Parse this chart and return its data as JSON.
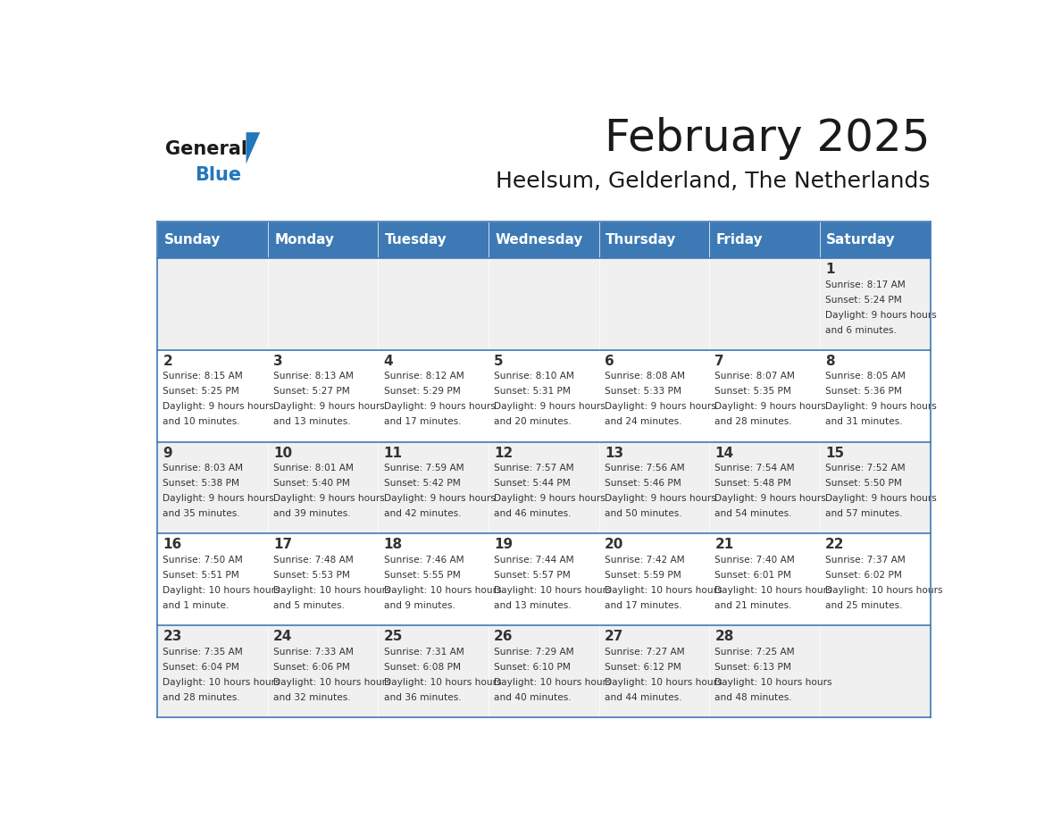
{
  "title": "February 2025",
  "subtitle": "Heelsum, Gelderland, The Netherlands",
  "days_of_week": [
    "Sunday",
    "Monday",
    "Tuesday",
    "Wednesday",
    "Thursday",
    "Friday",
    "Saturday"
  ],
  "header_bg": "#3d7ab5",
  "header_text": "#ffffff",
  "cell_bg_light": "#f0f0f0",
  "cell_bg_white": "#ffffff",
  "grid_line_color": "#3d7ab5",
  "text_color": "#333333",
  "title_color": "#1a1a1a",
  "logo_general_color": "#1a1a1a",
  "logo_blue_color": "#2277bb",
  "calendar_data": [
    [
      null,
      null,
      null,
      null,
      null,
      null,
      {
        "day": 1,
        "sunrise": "8:17 AM",
        "sunset": "5:24 PM",
        "daylight": "9 hours and 6 minutes"
      }
    ],
    [
      {
        "day": 2,
        "sunrise": "8:15 AM",
        "sunset": "5:25 PM",
        "daylight": "9 hours and 10 minutes"
      },
      {
        "day": 3,
        "sunrise": "8:13 AM",
        "sunset": "5:27 PM",
        "daylight": "9 hours and 13 minutes"
      },
      {
        "day": 4,
        "sunrise": "8:12 AM",
        "sunset": "5:29 PM",
        "daylight": "9 hours and 17 minutes"
      },
      {
        "day": 5,
        "sunrise": "8:10 AM",
        "sunset": "5:31 PM",
        "daylight": "9 hours and 20 minutes"
      },
      {
        "day": 6,
        "sunrise": "8:08 AM",
        "sunset": "5:33 PM",
        "daylight": "9 hours and 24 minutes"
      },
      {
        "day": 7,
        "sunrise": "8:07 AM",
        "sunset": "5:35 PM",
        "daylight": "9 hours and 28 minutes"
      },
      {
        "day": 8,
        "sunrise": "8:05 AM",
        "sunset": "5:36 PM",
        "daylight": "9 hours and 31 minutes"
      }
    ],
    [
      {
        "day": 9,
        "sunrise": "8:03 AM",
        "sunset": "5:38 PM",
        "daylight": "9 hours and 35 minutes"
      },
      {
        "day": 10,
        "sunrise": "8:01 AM",
        "sunset": "5:40 PM",
        "daylight": "9 hours and 39 minutes"
      },
      {
        "day": 11,
        "sunrise": "7:59 AM",
        "sunset": "5:42 PM",
        "daylight": "9 hours and 42 minutes"
      },
      {
        "day": 12,
        "sunrise": "7:57 AM",
        "sunset": "5:44 PM",
        "daylight": "9 hours and 46 minutes"
      },
      {
        "day": 13,
        "sunrise": "7:56 AM",
        "sunset": "5:46 PM",
        "daylight": "9 hours and 50 minutes"
      },
      {
        "day": 14,
        "sunrise": "7:54 AM",
        "sunset": "5:48 PM",
        "daylight": "9 hours and 54 minutes"
      },
      {
        "day": 15,
        "sunrise": "7:52 AM",
        "sunset": "5:50 PM",
        "daylight": "9 hours and 57 minutes"
      }
    ],
    [
      {
        "day": 16,
        "sunrise": "7:50 AM",
        "sunset": "5:51 PM",
        "daylight": "10 hours and 1 minute"
      },
      {
        "day": 17,
        "sunrise": "7:48 AM",
        "sunset": "5:53 PM",
        "daylight": "10 hours and 5 minutes"
      },
      {
        "day": 18,
        "sunrise": "7:46 AM",
        "sunset": "5:55 PM",
        "daylight": "10 hours and 9 minutes"
      },
      {
        "day": 19,
        "sunrise": "7:44 AM",
        "sunset": "5:57 PM",
        "daylight": "10 hours and 13 minutes"
      },
      {
        "day": 20,
        "sunrise": "7:42 AM",
        "sunset": "5:59 PM",
        "daylight": "10 hours and 17 minutes"
      },
      {
        "day": 21,
        "sunrise": "7:40 AM",
        "sunset": "6:01 PM",
        "daylight": "10 hours and 21 minutes"
      },
      {
        "day": 22,
        "sunrise": "7:37 AM",
        "sunset": "6:02 PM",
        "daylight": "10 hours and 25 minutes"
      }
    ],
    [
      {
        "day": 23,
        "sunrise": "7:35 AM",
        "sunset": "6:04 PM",
        "daylight": "10 hours and 28 minutes"
      },
      {
        "day": 24,
        "sunrise": "7:33 AM",
        "sunset": "6:06 PM",
        "daylight": "10 hours and 32 minutes"
      },
      {
        "day": 25,
        "sunrise": "7:31 AM",
        "sunset": "6:08 PM",
        "daylight": "10 hours and 36 minutes"
      },
      {
        "day": 26,
        "sunrise": "7:29 AM",
        "sunset": "6:10 PM",
        "daylight": "10 hours and 40 minutes"
      },
      {
        "day": 27,
        "sunrise": "7:27 AM",
        "sunset": "6:12 PM",
        "daylight": "10 hours and 44 minutes"
      },
      {
        "day": 28,
        "sunrise": "7:25 AM",
        "sunset": "6:13 PM",
        "daylight": "10 hours and 48 minutes"
      },
      null
    ]
  ]
}
